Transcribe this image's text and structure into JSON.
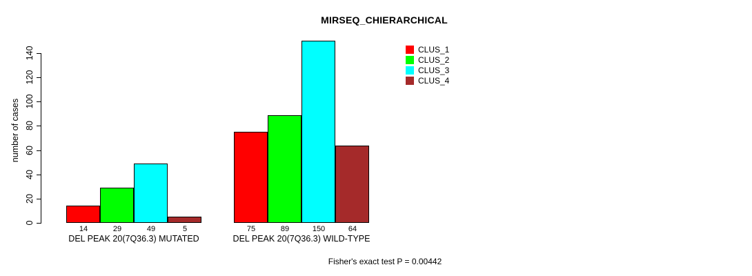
{
  "chart_data": {
    "type": "bar",
    "title": "MIRSEQ_CHIERARCHICAL",
    "xlabel": "",
    "ylabel": "number of cases",
    "categories": [
      "DEL PEAK 20(7Q36.3) MUTATED",
      "DEL PEAK 20(7Q36.3) WILD-TYPE"
    ],
    "series": [
      {
        "name": "CLUS_1",
        "color": "#ff0000",
        "values": [
          14,
          75
        ]
      },
      {
        "name": "CLUS_2",
        "color": "#00ff00",
        "values": [
          29,
          89
        ]
      },
      {
        "name": "CLUS_3",
        "color": "#00ffff",
        "values": [
          49,
          150
        ]
      },
      {
        "name": "CLUS_4",
        "color": "#a52a2a",
        "values": [
          5,
          64
        ]
      }
    ],
    "yticks": [
      0,
      20,
      40,
      60,
      80,
      100,
      120,
      140
    ],
    "ylim": [
      0,
      140
    ],
    "grid": false,
    "bar_value_labels": true,
    "legend_position": "top-right",
    "annotation": "Fisher's exact test P = 0.00442",
    "background_color": "#ffffff",
    "axis_color": "#000000"
  }
}
